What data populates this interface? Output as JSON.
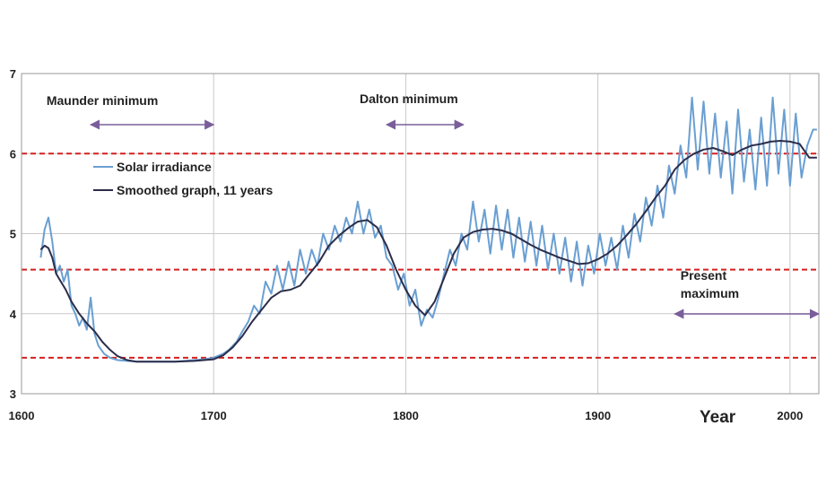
{
  "chart_data": {
    "type": "line",
    "title": "",
    "xlabel": "Year",
    "ylabel": "",
    "xlim": [
      1600,
      2015
    ],
    "ylim": [
      3,
      7
    ],
    "x_ticks": [
      {
        "value": 1600,
        "label": "1600"
      },
      {
        "value": 1700,
        "label": "1700"
      },
      {
        "value": 1800,
        "label": "1800"
      },
      {
        "value": 1900,
        "label": "1900"
      },
      {
        "value": 2000,
        "label": "2000"
      }
    ],
    "y_ticks": [
      {
        "value": 3,
        "label": "3"
      },
      {
        "value": 4,
        "label": "4"
      },
      {
        "value": 5,
        "label": "5"
      },
      {
        "value": 6,
        "label": "6"
      },
      {
        "value": 7,
        "label": "7"
      }
    ],
    "grid": true,
    "legend_position": "top-left",
    "series": [
      {
        "name": "Solar irradiance",
        "color": "#6a9fd2",
        "x": [
          1610,
          1612,
          1614,
          1616,
          1618,
          1620,
          1622,
          1624,
          1626,
          1628,
          1630,
          1632,
          1634,
          1636,
          1638,
          1640,
          1643,
          1646,
          1650,
          1655,
          1660,
          1665,
          1670,
          1675,
          1680,
          1685,
          1690,
          1695,
          1700,
          1705,
          1708,
          1712,
          1715,
          1718,
          1721,
          1724,
          1727,
          1730,
          1733,
          1736,
          1739,
          1742,
          1745,
          1748,
          1751,
          1754,
          1757,
          1760,
          1763,
          1766,
          1769,
          1772,
          1775,
          1778,
          1781,
          1784,
          1787,
          1790,
          1793,
          1796,
          1799,
          1802,
          1805,
          1808,
          1811,
          1814,
          1817,
          1820,
          1823,
          1826,
          1829,
          1832,
          1835,
          1838,
          1841,
          1844,
          1847,
          1850,
          1853,
          1856,
          1859,
          1862,
          1865,
          1868,
          1871,
          1874,
          1877,
          1880,
          1883,
          1886,
          1889,
          1892,
          1895,
          1898,
          1901,
          1904,
          1907,
          1910,
          1913,
          1916,
          1919,
          1922,
          1925,
          1928,
          1931,
          1934,
          1937,
          1940,
          1943,
          1946,
          1949,
          1952,
          1955,
          1958,
          1961,
          1964,
          1967,
          1970,
          1973,
          1976,
          1979,
          1982,
          1985,
          1988,
          1991,
          1994,
          1997,
          2000,
          2003,
          2006,
          2009,
          2012,
          2014
        ],
        "values": [
          4.7,
          5.05,
          5.2,
          4.9,
          4.5,
          4.6,
          4.4,
          4.55,
          4.1,
          4.0,
          3.85,
          3.95,
          3.8,
          4.2,
          3.75,
          3.6,
          3.5,
          3.45,
          3.42,
          3.41,
          3.4,
          3.4,
          3.4,
          3.4,
          3.4,
          3.41,
          3.42,
          3.43,
          3.45,
          3.5,
          3.55,
          3.65,
          3.78,
          3.9,
          4.1,
          4.0,
          4.4,
          4.25,
          4.6,
          4.3,
          4.65,
          4.35,
          4.8,
          4.5,
          4.8,
          4.6,
          5.0,
          4.8,
          5.1,
          4.9,
          5.2,
          5.0,
          5.4,
          5.0,
          5.3,
          4.95,
          5.1,
          4.7,
          4.6,
          4.3,
          4.5,
          4.1,
          4.3,
          3.85,
          4.05,
          3.95,
          4.2,
          4.5,
          4.8,
          4.6,
          5.0,
          4.8,
          5.4,
          4.9,
          5.3,
          4.75,
          5.35,
          4.8,
          5.3,
          4.7,
          5.2,
          4.65,
          5.15,
          4.6,
          5.1,
          4.55,
          5.0,
          4.5,
          4.95,
          4.4,
          4.9,
          4.35,
          4.85,
          4.5,
          5.0,
          4.6,
          4.95,
          4.55,
          5.1,
          4.7,
          5.25,
          4.9,
          5.45,
          5.1,
          5.6,
          5.2,
          5.85,
          5.5,
          6.1,
          5.7,
          6.7,
          5.8,
          6.65,
          5.75,
          6.5,
          5.7,
          6.4,
          5.5,
          6.55,
          5.65,
          6.3,
          5.55,
          6.45,
          5.6,
          6.7,
          5.75,
          6.55,
          5.6,
          6.5,
          5.7,
          6.1,
          6.3,
          6.3
        ]
      },
      {
        "name": "Smoothed graph, 11 years",
        "color": "#2b2d4a",
        "x": [
          1610,
          1612,
          1614,
          1616,
          1618,
          1620,
          1623,
          1626,
          1630,
          1634,
          1638,
          1642,
          1646,
          1650,
          1655,
          1660,
          1670,
          1680,
          1690,
          1695,
          1700,
          1705,
          1710,
          1715,
          1720,
          1725,
          1730,
          1735,
          1740,
          1745,
          1750,
          1755,
          1760,
          1765,
          1770,
          1775,
          1780,
          1785,
          1790,
          1795,
          1800,
          1805,
          1810,
          1815,
          1820,
          1825,
          1830,
          1835,
          1840,
          1845,
          1850,
          1855,
          1860,
          1865,
          1870,
          1875,
          1880,
          1885,
          1890,
          1895,
          1900,
          1905,
          1910,
          1915,
          1920,
          1925,
          1930,
          1935,
          1940,
          1945,
          1950,
          1955,
          1960,
          1965,
          1970,
          1975,
          1980,
          1985,
          1990,
          1995,
          2000,
          2005,
          2010,
          2014
        ],
        "values": [
          4.8,
          4.85,
          4.82,
          4.7,
          4.5,
          4.42,
          4.3,
          4.15,
          4.0,
          3.88,
          3.78,
          3.65,
          3.55,
          3.47,
          3.42,
          3.4,
          3.4,
          3.4,
          3.41,
          3.42,
          3.43,
          3.48,
          3.58,
          3.72,
          3.9,
          4.05,
          4.2,
          4.28,
          4.3,
          4.35,
          4.5,
          4.65,
          4.85,
          4.97,
          5.07,
          5.15,
          5.17,
          5.08,
          4.85,
          4.55,
          4.3,
          4.1,
          3.98,
          4.15,
          4.45,
          4.75,
          4.95,
          5.02,
          5.05,
          5.06,
          5.04,
          5.0,
          4.93,
          4.86,
          4.8,
          4.75,
          4.7,
          4.66,
          4.62,
          4.63,
          4.68,
          4.75,
          4.85,
          4.98,
          5.12,
          5.28,
          5.45,
          5.6,
          5.8,
          5.92,
          6.0,
          6.05,
          6.07,
          6.03,
          5.98,
          6.05,
          6.1,
          6.12,
          6.15,
          6.16,
          6.15,
          6.12,
          5.95,
          5.95
        ]
      }
    ],
    "reference_lines": [
      {
        "name": "upper-dashed-line",
        "value": 6.0,
        "color": "#d42020"
      },
      {
        "name": "middle-dashed-line",
        "value": 4.55,
        "color": "#d42020"
      },
      {
        "name": "lower-dashed-line",
        "value": 3.45,
        "color": "#d42020"
      }
    ],
    "annotations": [
      {
        "name": "maunder-minimum",
        "text": "Maunder minimum",
        "arrow": [
          1636,
          1700
        ]
      },
      {
        "name": "dalton-minimum",
        "text": "Dalton minimum",
        "arrow": [
          1790,
          1830
        ]
      },
      {
        "name": "present-maximum",
        "text": [
          "Present",
          "maximum"
        ],
        "arrow": [
          1940,
          2015
        ]
      }
    ]
  }
}
